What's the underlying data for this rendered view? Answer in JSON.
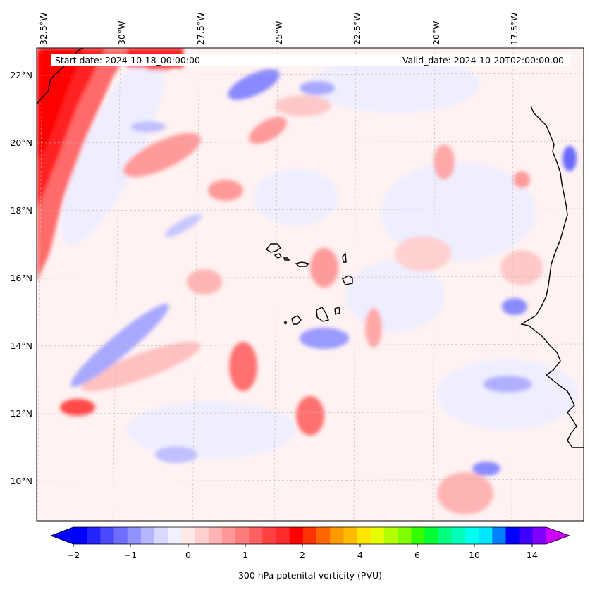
{
  "map": {
    "header_left": "Start date: 2024-10-18_00:00:00",
    "header_right": "Valid_date: 2024-10-20T02:00:00.00",
    "lon_labels": [
      "32.5°W",
      "30°W",
      "27.5°W",
      "25°W",
      "22.5°W",
      "20°W",
      "17.5°W"
    ],
    "lat_labels": [
      "22°N",
      "20°N",
      "18°N",
      "16°N",
      "14°N",
      "12°N",
      "10°N"
    ],
    "extent": {
      "lon_min": -33.0,
      "lon_max": -15.6,
      "lat_min": 8.9,
      "lat_max": 22.7
    },
    "gridlines": true
  },
  "colorbar": {
    "label": "300 hPa potenital vorticity (PVU)",
    "tick_labels": [
      "−2",
      "−1",
      "0",
      "1",
      "2",
      "4",
      "6",
      "10",
      "14"
    ],
    "colors": [
      "#0000ff",
      "#2424ff",
      "#4949ff",
      "#6d6dff",
      "#9191ff",
      "#b6b6ff",
      "#dadaff",
      "#f0f0ff",
      "#ffe8e8",
      "#ffd0d0",
      "#ffb4b4",
      "#ff9898",
      "#ff7c7c",
      "#ff6060",
      "#ff4040",
      "#ff2a2a",
      "#ff0000",
      "#ff3300",
      "#ff6600",
      "#ff9900",
      "#ffbb00",
      "#ffe600",
      "#e6ff00",
      "#b3ff00",
      "#80ff00",
      "#33ff00",
      "#00ff33",
      "#00ff80",
      "#00ffbb",
      "#00ffee",
      "#00e6ff",
      "#0080ff",
      "#0000ff",
      "#4000ff",
      "#8000ff"
    ],
    "extend_min_color": "#0000ff",
    "extend_max_color": "#cc00ff"
  },
  "palette": {
    "neg_light": "#eeeeff",
    "neg_mid": "#c8c8ff",
    "neg_strong": "#8a8aff",
    "pos_light": "#ffe5e5",
    "pos_mid": "#ffc2c2",
    "pos_strong": "#ff8a8a",
    "pos_max": "#ff2020",
    "coast": "#000000"
  }
}
